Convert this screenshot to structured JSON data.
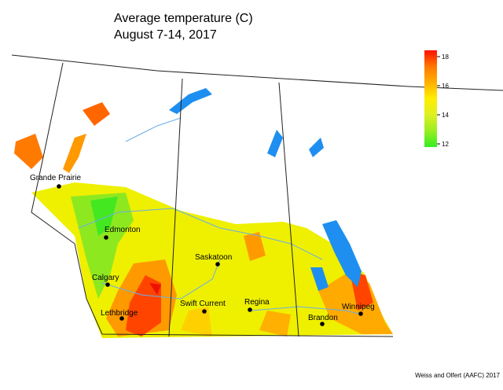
{
  "title": [
    "Average temperature (C)",
    "August 7-14, 2017"
  ],
  "legend": {
    "ticks": [
      12,
      14,
      16,
      18
    ],
    "colors": [
      "#33ee22",
      "#99ee22",
      "#ddf022",
      "#ffee00",
      "#ffb000",
      "#ff7700",
      "#ff1100"
    ]
  },
  "cities": [
    "Grande Prairie",
    "Edmonton",
    "Calgary",
    "Lethbridge",
    "Saskatoon",
    "Swift Current",
    "Regina",
    "Brandon",
    "Winnipeg"
  ],
  "credit": "Weiss and Olfert (AAFC) 2017"
}
